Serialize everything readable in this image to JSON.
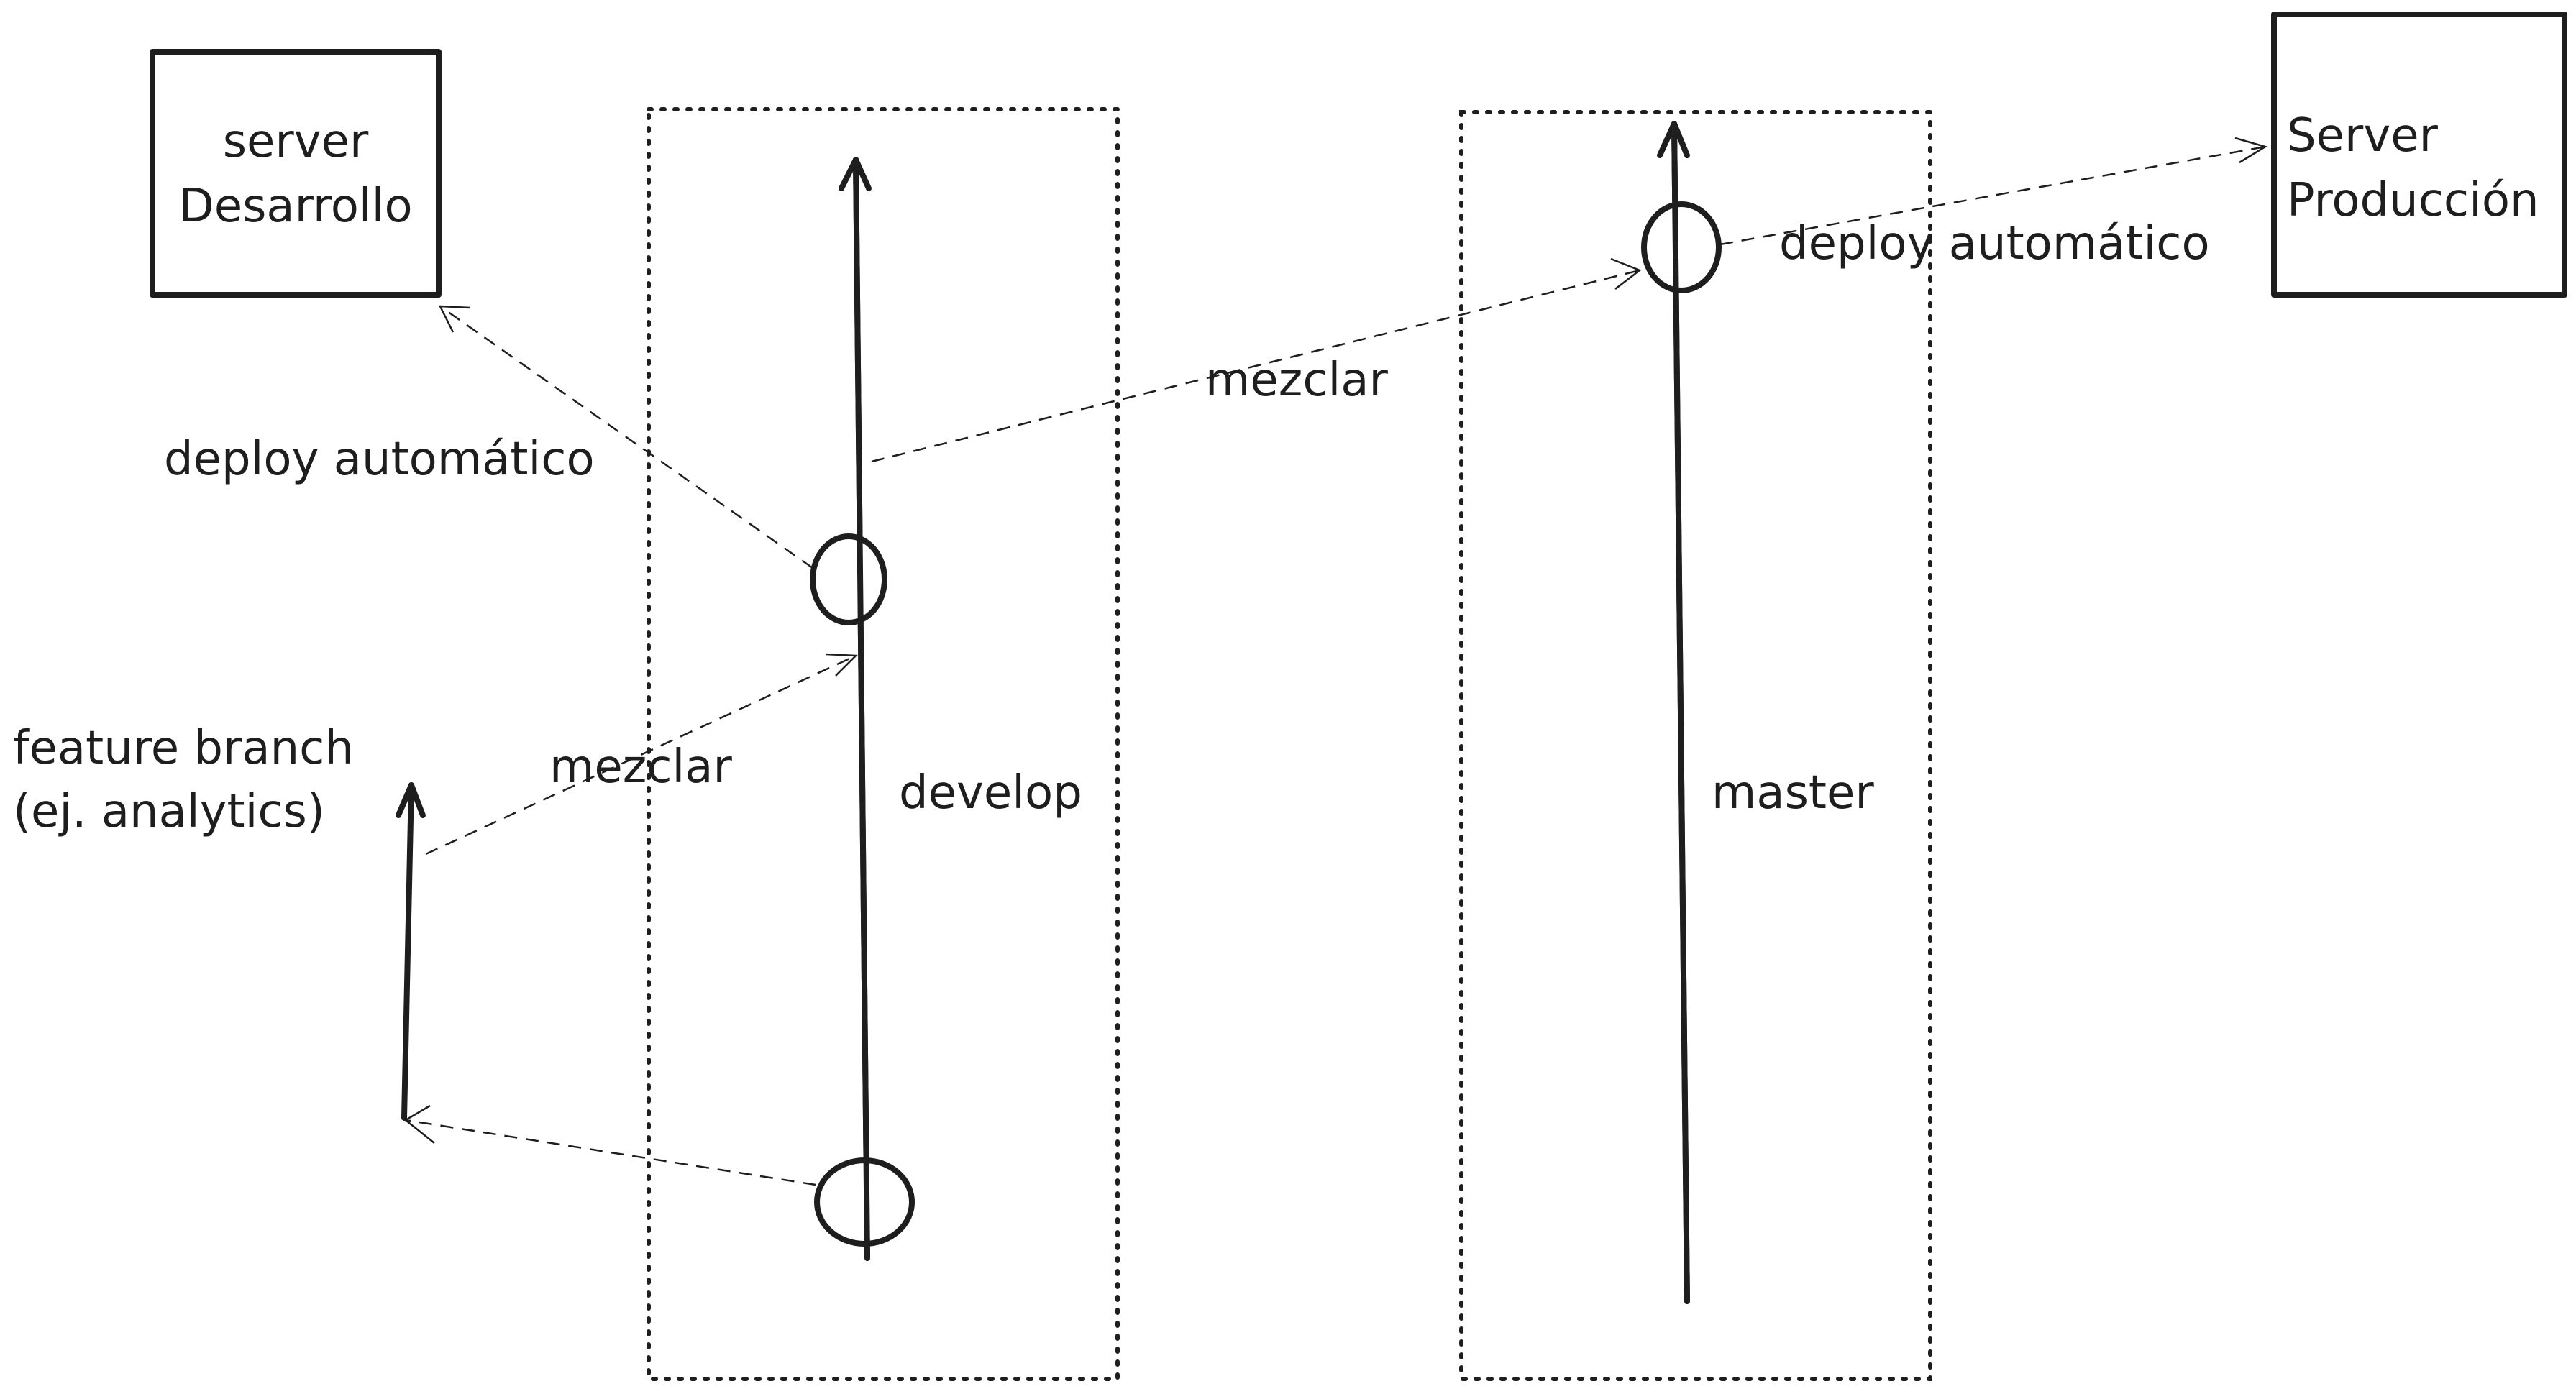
{
  "nodes": {
    "server_dev": {
      "line1": "server",
      "line2": "Desarrollo"
    },
    "server_prod": {
      "line1": "Server",
      "line2": "Producción"
    }
  },
  "branches": {
    "develop": "develop",
    "master": "master",
    "feature_line1": "feature branch",
    "feature_line2": "(ej. analytics)"
  },
  "edges": {
    "deploy_dev": "deploy automático",
    "merge_to_master": "mezclar",
    "deploy_prod": "deploy automático",
    "merge_feature": "mezclar"
  }
}
